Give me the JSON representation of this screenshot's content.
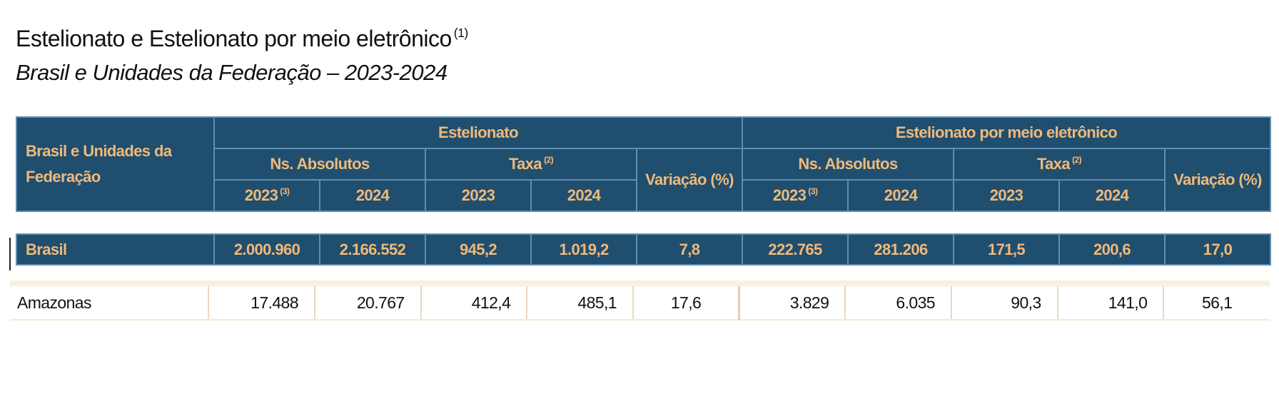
{
  "title": {
    "text": "Estelionato e Estelionato por meio eletrônico",
    "note": "(1)"
  },
  "subtitle": "Brasil e Unidades da Federação – 2023-2024",
  "table": {
    "header": {
      "region": "Brasil e Unidades da Federação",
      "groups": [
        {
          "label": "Estelionato",
          "absolute": "Ns. Absolutos",
          "rate": "Taxa",
          "rate_note": "(2)",
          "variation": "Variação (%)",
          "years": [
            "2023",
            "2024",
            "2023",
            "2024"
          ],
          "year_note": "(3)"
        },
        {
          "label": "Estelionato por meio eletrônico",
          "absolute": "Ns. Absolutos",
          "rate": "Taxa",
          "rate_note": "(2)",
          "variation": "Variação (%)",
          "years": [
            "2023",
            "2024",
            "2023",
            "2024"
          ],
          "year_note": "(3)"
        }
      ]
    },
    "rows": [
      [
        "Brasil",
        "2.000.960",
        "2.166.552",
        "945,2",
        "1.019,2",
        "7,8",
        "222.765",
        "281.206",
        "171,5",
        "200,6",
        "17,0"
      ],
      [
        "Amazonas",
        "17.488",
        "20.767",
        "412,4",
        "485,1",
        "17,6",
        "3.829",
        "6.035",
        "90,3",
        "141,0",
        "56,1"
      ]
    ]
  }
}
